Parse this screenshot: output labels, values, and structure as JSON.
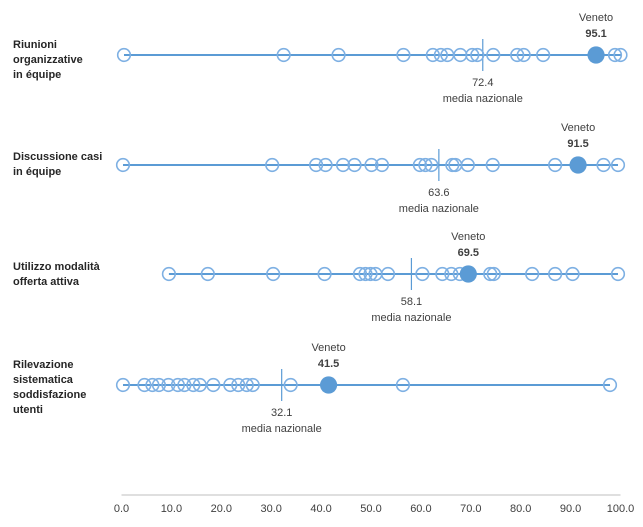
{
  "chart_data": {
    "type": "scatter",
    "subtype": "dot-strip-distribution",
    "title": "",
    "highlight_name": "Veneto",
    "mean_caption": "media nazionale",
    "x_axis": {
      "min": 0,
      "max": 100,
      "tick_labels": [
        "0.0",
        "10.0",
        "20.0",
        "30.0",
        "40.0",
        "50.0",
        "60.0",
        "70.0",
        "80.0",
        "90.0",
        "100.0"
      ],
      "tick_values": [
        0,
        10,
        20,
        30,
        40,
        50,
        60,
        70,
        80,
        90,
        100
      ]
    },
    "colors": {
      "line": "#5B9BD5",
      "open_circle": "#7EB0E3",
      "highlight_dot": "#5B9BD5",
      "mean_tick": "#5B9BD5",
      "axis_line": "#BFBFBF",
      "annotation_text": "#404040",
      "category_text": "#262626"
    },
    "rows": [
      {
        "label_lines": [
          "Riunioni",
          "organizzative",
          "in équipe"
        ],
        "veneto_value": 95.1,
        "veneto_label": "Veneto",
        "veneto_value_label": "95.1",
        "mean_value": 72.4,
        "mean_value_label": "72.4",
        "other_values": [
          0.5,
          32.5,
          43.5,
          56.5,
          62.4,
          64.0,
          65.3,
          67.9,
          70.3,
          71.3,
          74.5,
          79.3,
          80.6,
          84.5,
          98.9,
          100.0
        ]
      },
      {
        "label_lines": [
          "Discussione casi",
          "in équipe"
        ],
        "veneto_value": 91.5,
        "veneto_label": "Veneto",
        "veneto_value_label": "91.5",
        "mean_value": 63.6,
        "mean_value_label": "63.6",
        "other_values": [
          0.3,
          30.2,
          39.0,
          40.9,
          44.4,
          46.7,
          50.1,
          52.2,
          59.8,
          60.9,
          62.1,
          66.3,
          66.9,
          69.4,
          74.4,
          86.9,
          96.6,
          99.5
        ]
      },
      {
        "label_lines": [
          "Utilizzo modalità",
          "offerta attiva"
        ],
        "veneto_value": 69.5,
        "veneto_label": "Veneto",
        "veneto_value_label": "69.5",
        "mean_value": 58.1,
        "mean_value_label": "58.1",
        "other_values": [
          9.5,
          17.3,
          30.4,
          40.7,
          47.8,
          48.9,
          49.9,
          50.9,
          53.4,
          60.3,
          64.3,
          66.1,
          67.8,
          73.9,
          74.6,
          82.3,
          86.9,
          90.4,
          99.5
        ]
      },
      {
        "label_lines": [
          "Rilevazione",
          "sistematica",
          "soddisfazione",
          "utenti"
        ],
        "veneto_value": 41.5,
        "veneto_label": "Veneto",
        "veneto_value_label": "41.5",
        "mean_value": 32.1,
        "mean_value_label": "32.1",
        "other_values": [
          0.3,
          4.6,
          6.2,
          7.5,
          9.4,
          11.3,
          12.6,
          14.4,
          15.7,
          18.4,
          21.8,
          23.4,
          25.1,
          26.3,
          33.9,
          56.4,
          97.9
        ]
      }
    ]
  }
}
